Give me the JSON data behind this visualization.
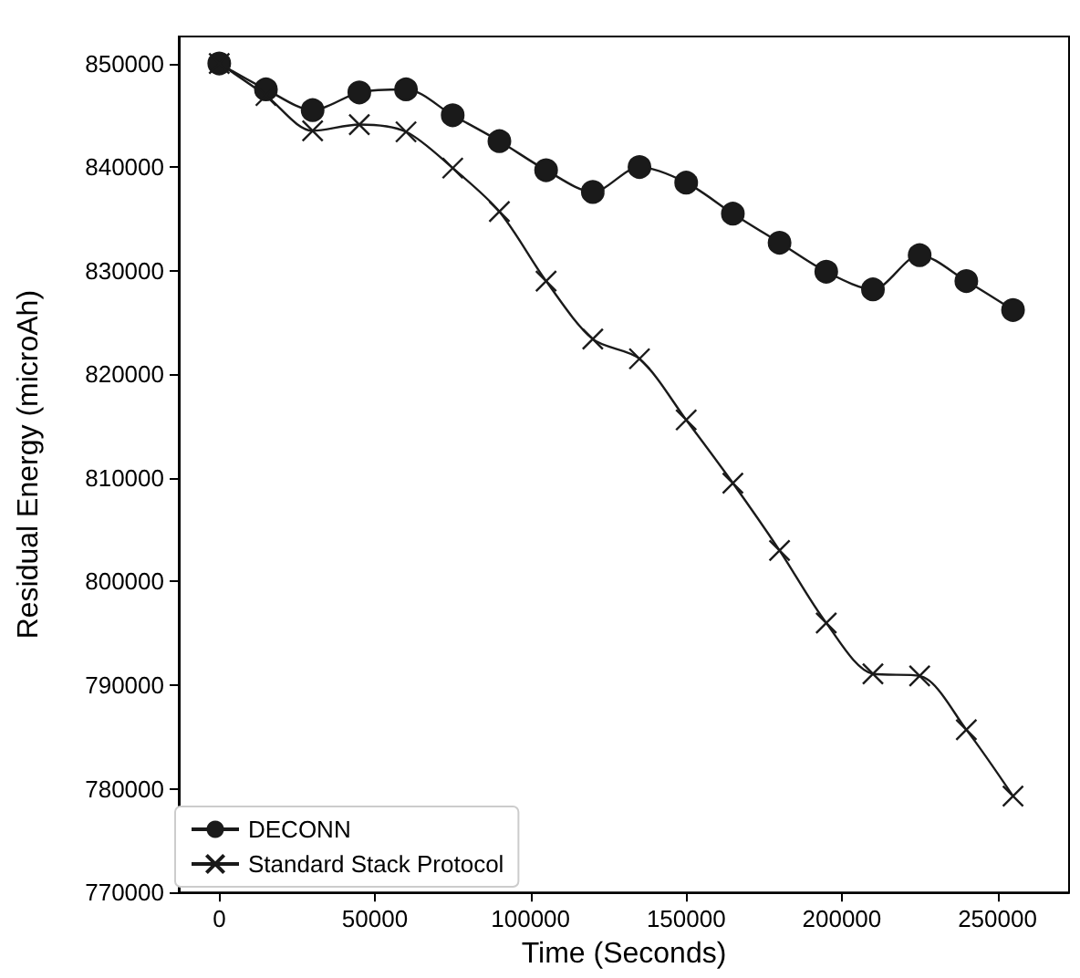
{
  "chart_data": {
    "type": "line",
    "xlabel": "Time (Seconds)",
    "ylabel": "Residual Energy (microAh)",
    "x": [
      0,
      15000,
      30000,
      45000,
      60000,
      75000,
      90000,
      105000,
      120000,
      135000,
      150000,
      165000,
      180000,
      195000,
      210000,
      225000,
      240000,
      255000
    ],
    "series": [
      {
        "name": "DECONN",
        "color": "#1a1a1a",
        "marker": "circle",
        "values": [
          850000,
          847500,
          845500,
          847200,
          847500,
          845000,
          842500,
          839700,
          837600,
          840000,
          838500,
          835500,
          832700,
          829900,
          828200,
          831500,
          829000,
          826200
        ]
      },
      {
        "name": "Standard Stack Protocol",
        "color": "#1a1a1a",
        "marker": "cross",
        "values": [
          850000,
          846900,
          843500,
          844100,
          843400,
          839900,
          835700,
          829000,
          823400,
          821500,
          815600,
          809500,
          803000,
          796000,
          791100,
          790900,
          785700,
          779300
        ]
      }
    ],
    "xlim": [
      -13000,
      273000
    ],
    "xticks": [
      0,
      50000,
      100000,
      150000,
      200000,
      250000
    ],
    "ylim": [
      770000,
      852600
    ],
    "yticks": [
      770000,
      780000,
      790000,
      800000,
      810000,
      820000,
      830000,
      840000,
      850000
    ],
    "legend": "bottom left",
    "line_style": "solid"
  }
}
